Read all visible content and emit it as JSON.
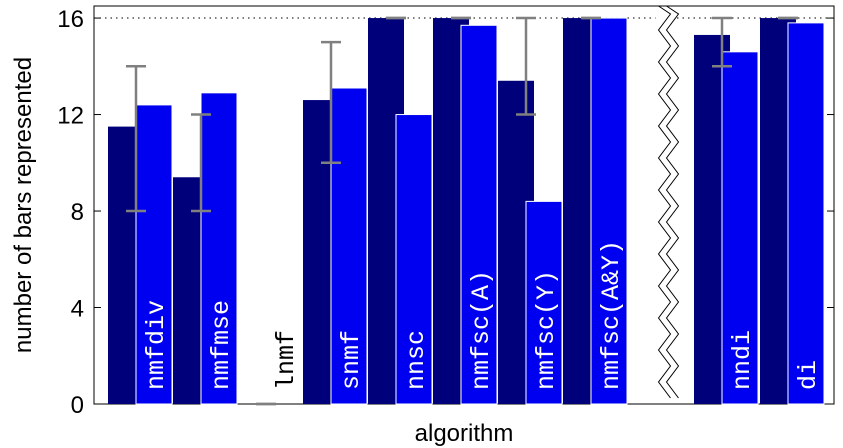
{
  "chart_data": {
    "type": "bar",
    "title": "",
    "xlabel": "algorithm",
    "ylabel": "number of bars represented",
    "ylim": [
      0,
      16.5
    ],
    "yticks": [
      0,
      4,
      8,
      12,
      16
    ],
    "reference_line": 16,
    "categories": [
      "nmfdiv",
      "nmfmse",
      "lnmf",
      "snmf",
      "nnsc",
      "nmfsc(A)",
      "nmfsc(Y)",
      "nmfsc(A&Y)",
      "nndi",
      "di"
    ],
    "axis_break_after": "nmfsc(A&Y)",
    "series": [
      {
        "values": [
          11.5,
          9.4,
          0,
          12.6,
          16,
          16,
          13.4,
          16,
          15.3,
          16
        ],
        "error_low": [
          8,
          8,
          0,
          10,
          16,
          16,
          12,
          16,
          14,
          16
        ],
        "error_high": [
          14,
          12,
          0,
          15,
          16,
          16,
          16,
          16,
          16,
          16
        ],
        "color": "#00007a"
      },
      {
        "values": [
          12.4,
          12.9,
          0,
          13.1,
          12.0,
          15.7,
          8.4,
          16,
          14.6,
          15.8
        ],
        "color": "#0000f0"
      }
    ],
    "grid": false,
    "colors": {
      "dark_bar": "#00007a",
      "light_bar": "#0000f0",
      "error_bar": "#808080",
      "label_on_bar": "#ffffff",
      "label_off_bar": "#000000"
    }
  }
}
